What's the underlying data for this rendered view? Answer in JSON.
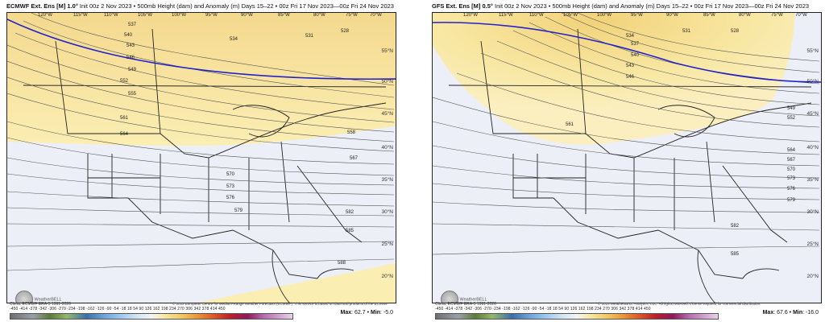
{
  "left": {
    "title_bold": "ECMWF Ext. Ens [M] 1.0°",
    "title_rest": " Init 00z 2 Nov 2023 • 500mb Height (dam) and Anomaly (m) Days 15–22 • 00z Fri 17 Nov 2023—00z Fri 24 Nov 2023",
    "clim": "Clima: ECMWF ERA-5 1991-2020",
    "credit": "© 2023 European Centre for Medium-Range Weather Forecasts (ECMWF). This service is based on data and products of the ECMWF.",
    "max_label": "Max",
    "max": "62.7",
    "min_label": "Min",
    "min": "-5.0",
    "contours": [
      "537",
      "540",
      "543",
      "546",
      "549",
      "552",
      "555",
      "561",
      "564",
      "567",
      "570",
      "573",
      "576",
      "579",
      "582",
      "585",
      "588",
      "528",
      "531",
      "534",
      "558"
    ]
  },
  "right": {
    "title_bold": "GFS Ext. Ens [M] 0.5°",
    "title_rest": " Init 00z 2 Nov 2023 • 500mb Height (dam) and Anomaly (m) Days 15–22 • 00z Fri 17 Nov 2023—00z Fri 24 Nov 2023",
    "clim": "Clima: ECMWF ERA-5 1991-2020",
    "credit": "© 2023 WeatherBELL Analytics, LLC. All rights reserved. License required for commercial distribution.",
    "max_label": "Max",
    "max": "67.6",
    "min_label": "Min",
    "min": "-16.0",
    "contours": [
      "531",
      "534",
      "537",
      "540",
      "543",
      "546",
      "528",
      "549",
      "552",
      "561",
      "564",
      "567",
      "570",
      "573",
      "576",
      "579",
      "582",
      "585"
    ]
  },
  "longitudes": [
    "120°W",
    "115°W",
    "110°W",
    "105°W",
    "100°W",
    "95°W",
    "90°W",
    "85°W",
    "80°W",
    "75°W",
    "70°W",
    "65°W"
  ],
  "latitudes": [
    "55°N",
    "50°N",
    "45°N",
    "40°N",
    "35°N",
    "30°N",
    "25°N",
    "20°N"
  ],
  "scale_ticks": "-450 -414 -378 -342 -306 -270 -234 -198 -162 -126 -90 -54 -18 18 54 90 126 162 198 234 270 306 342 378 414 450",
  "logo_text": "WeatherBELL",
  "colors": {
    "warm_anomaly": "#f9eaa8",
    "warm_strong": "#f3d98a",
    "cool_anomaly": "#e9ecf6",
    "highlight_contour": "#2222cc"
  }
}
